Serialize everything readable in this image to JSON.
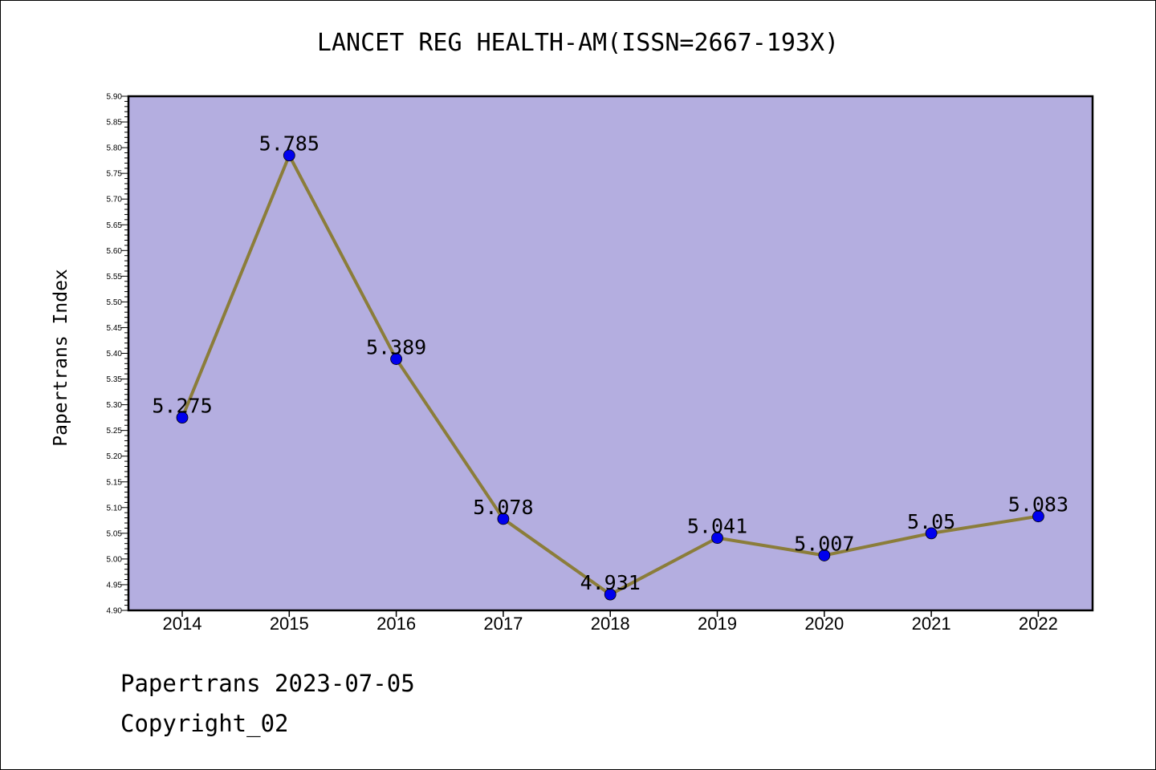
{
  "chart_data": {
    "type": "line",
    "title": "LANCET REG HEALTH-AM(ISSN=2667-193X)",
    "xlabel": "",
    "ylabel": "Papertrans Index",
    "categories": [
      "2014",
      "2015",
      "2016",
      "2017",
      "2018",
      "2019",
      "2020",
      "2021",
      "2022"
    ],
    "values": [
      5.275,
      5.785,
      5.389,
      5.078,
      4.931,
      5.041,
      5.007,
      5.05,
      5.083
    ],
    "data_labels": [
      "5.275",
      "5.785",
      "5.389",
      "5.078",
      "4.931",
      "5.041",
      "5.007",
      "5.05",
      "5.083"
    ],
    "ylim": [
      4.9,
      5.9
    ],
    "yticks": [
      "4.90",
      "4.95",
      "5.00",
      "5.05",
      "5.10",
      "5.15",
      "5.20",
      "5.25",
      "5.30",
      "5.35",
      "5.40",
      "5.45",
      "5.50",
      "5.55",
      "5.60",
      "5.65",
      "5.70",
      "5.75",
      "5.80",
      "5.85",
      "5.90"
    ],
    "grid": false,
    "colors": {
      "plot_background": "#b4aee0",
      "line": "#8b7d3a",
      "marker": "#0000ee"
    }
  },
  "footer": {
    "line1": "Papertrans 2023-07-05",
    "line2": "Copyright_02"
  }
}
